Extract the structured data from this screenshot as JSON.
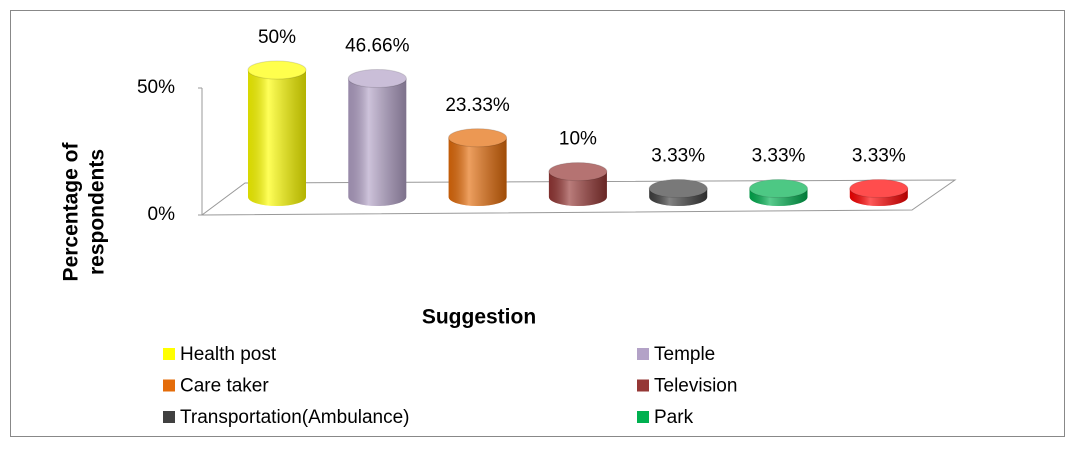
{
  "chart_data": {
    "type": "bar3d",
    "xlabel": "Suggestion",
    "ylabel": [
      "Percentage of",
      "respondents"
    ],
    "categories": [
      "Health post",
      "Temple",
      "Care taker",
      "Television",
      "Transportation(Ambulance)",
      "Park",
      null
    ],
    "values": [
      50,
      46.66,
      23.33,
      10,
      3.33,
      3.33,
      3.33
    ],
    "value_labels": [
      "50%",
      "46.66%",
      "23.33%",
      "10%",
      "3.33%",
      "3.33%",
      "3.33%"
    ],
    "colors": [
      "#ffff00",
      "#b3a2c7",
      "#e46c0a",
      "#953735",
      "#404040",
      "#00b050",
      "#ff0000"
    ],
    "ylim": [
      0,
      50
    ],
    "yticks": [
      {
        "value": 0,
        "label": "0%"
      },
      {
        "value": 50,
        "label": "50%"
      }
    ]
  }
}
